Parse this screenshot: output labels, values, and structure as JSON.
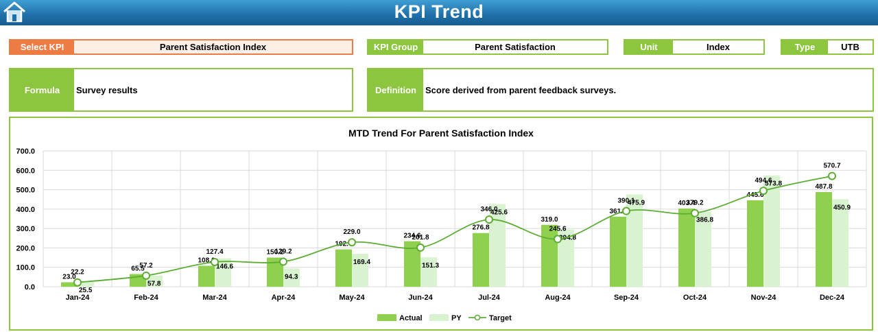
{
  "header": {
    "title": "KPI Trend",
    "home_icon": "home-icon"
  },
  "kpi": {
    "select_label": "Select KPI",
    "select_value": "Parent Satisfaction Index",
    "group_label": "KPI Group",
    "group_value": "Parent Satisfaction",
    "unit_label": "Unit",
    "unit_value": "Index",
    "type_label": "Type",
    "type_value": "UTB",
    "formula_label": "Formula",
    "formula_value": "Survey results",
    "definition_label": "Definition",
    "definition_value": "Score derived from parent feedback surveys."
  },
  "colors": {
    "accent": "#8cc63f",
    "select": "#ec7c44",
    "header": "#1f6fa8",
    "actual": "#8fd14f",
    "py": "#d9f2d0",
    "target": "#5cad34"
  },
  "chart_data": {
    "type": "bar",
    "title": "MTD Trend For Parent Satisfaction Index",
    "categories": [
      "Jan-24",
      "Feb-24",
      "Mar-24",
      "Apr-24",
      "May-24",
      "Jun-24",
      "Jul-24",
      "Aug-24",
      "Sep-24",
      "Oct-24",
      "Nov-24",
      "Dec-24"
    ],
    "series": [
      {
        "name": "Actual",
        "kind": "bar",
        "values": [
          23.0,
          65.5,
          108.0,
          150.2,
          192.4,
          234.6,
          276.8,
          319.0,
          361.2,
          403.4,
          445.6,
          487.8
        ]
      },
      {
        "name": "PY",
        "kind": "bar",
        "values": [
          25.5,
          57.8,
          146.6,
          94.3,
          169.4,
          151.3,
          425.6,
          294.8,
          475.9,
          386.8,
          573.8,
          450.9
        ]
      },
      {
        "name": "Target",
        "kind": "line",
        "values": [
          22.2,
          57.2,
          127.4,
          129.2,
          229.0,
          201.8,
          346.0,
          245.6,
          390.1,
          379.2,
          494.6,
          570.7
        ]
      }
    ],
    "ylim": [
      0,
      700
    ],
    "yticks": [
      "0.0",
      "100.0",
      "200.0",
      "300.0",
      "400.0",
      "500.0",
      "600.0",
      "700.0"
    ],
    "grid": true,
    "legend": "bottom"
  }
}
